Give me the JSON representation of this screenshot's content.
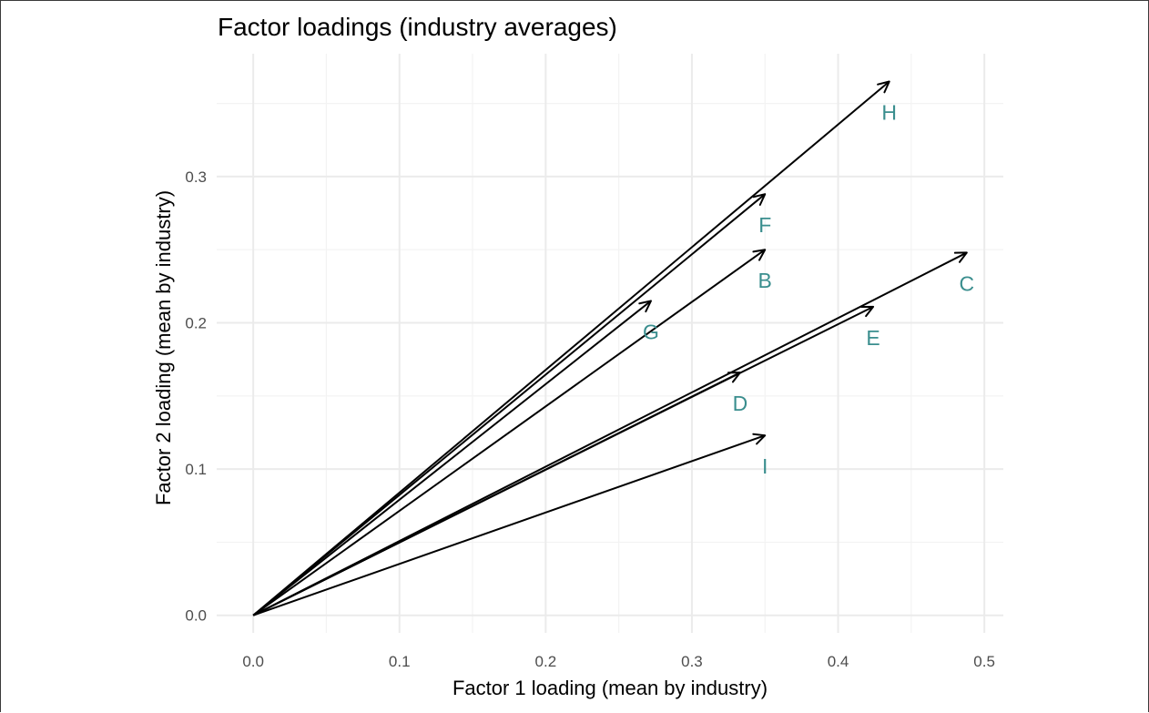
{
  "chart_data": {
    "type": "vector",
    "title": "Factor loadings (industry averages)",
    "xlabel": "Factor 1 loading (mean by industry)",
    "ylabel": "Factor 2 loading (mean by industry)",
    "xlim": [
      -0.025,
      0.513
    ],
    "ylim": [
      -0.012,
      0.384
    ],
    "x_ticks": [
      0.0,
      0.1,
      0.2,
      0.3,
      0.4,
      0.5
    ],
    "x_tick_labels": [
      "0.0",
      "0.1",
      "0.2",
      "0.3",
      "0.4",
      "0.5"
    ],
    "y_ticks": [
      0.0,
      0.1,
      0.2,
      0.3
    ],
    "y_tick_labels": [
      "0.0",
      "0.1",
      "0.2",
      "0.3"
    ],
    "grid": true,
    "origin": [
      0,
      0
    ],
    "label_color": "#3a8e8e",
    "arrow_color": "#000000",
    "vectors": [
      {
        "label": "H",
        "x": 0.435,
        "y": 0.365
      },
      {
        "label": "F",
        "x": 0.35,
        "y": 0.288
      },
      {
        "label": "B",
        "x": 0.35,
        "y": 0.25
      },
      {
        "label": "G",
        "x": 0.272,
        "y": 0.215
      },
      {
        "label": "C",
        "x": 0.488,
        "y": 0.248
      },
      {
        "label": "E",
        "x": 0.424,
        "y": 0.211
      },
      {
        "label": "D",
        "x": 0.333,
        "y": 0.166
      },
      {
        "label": "I",
        "x": 0.35,
        "y": 0.123
      }
    ]
  }
}
